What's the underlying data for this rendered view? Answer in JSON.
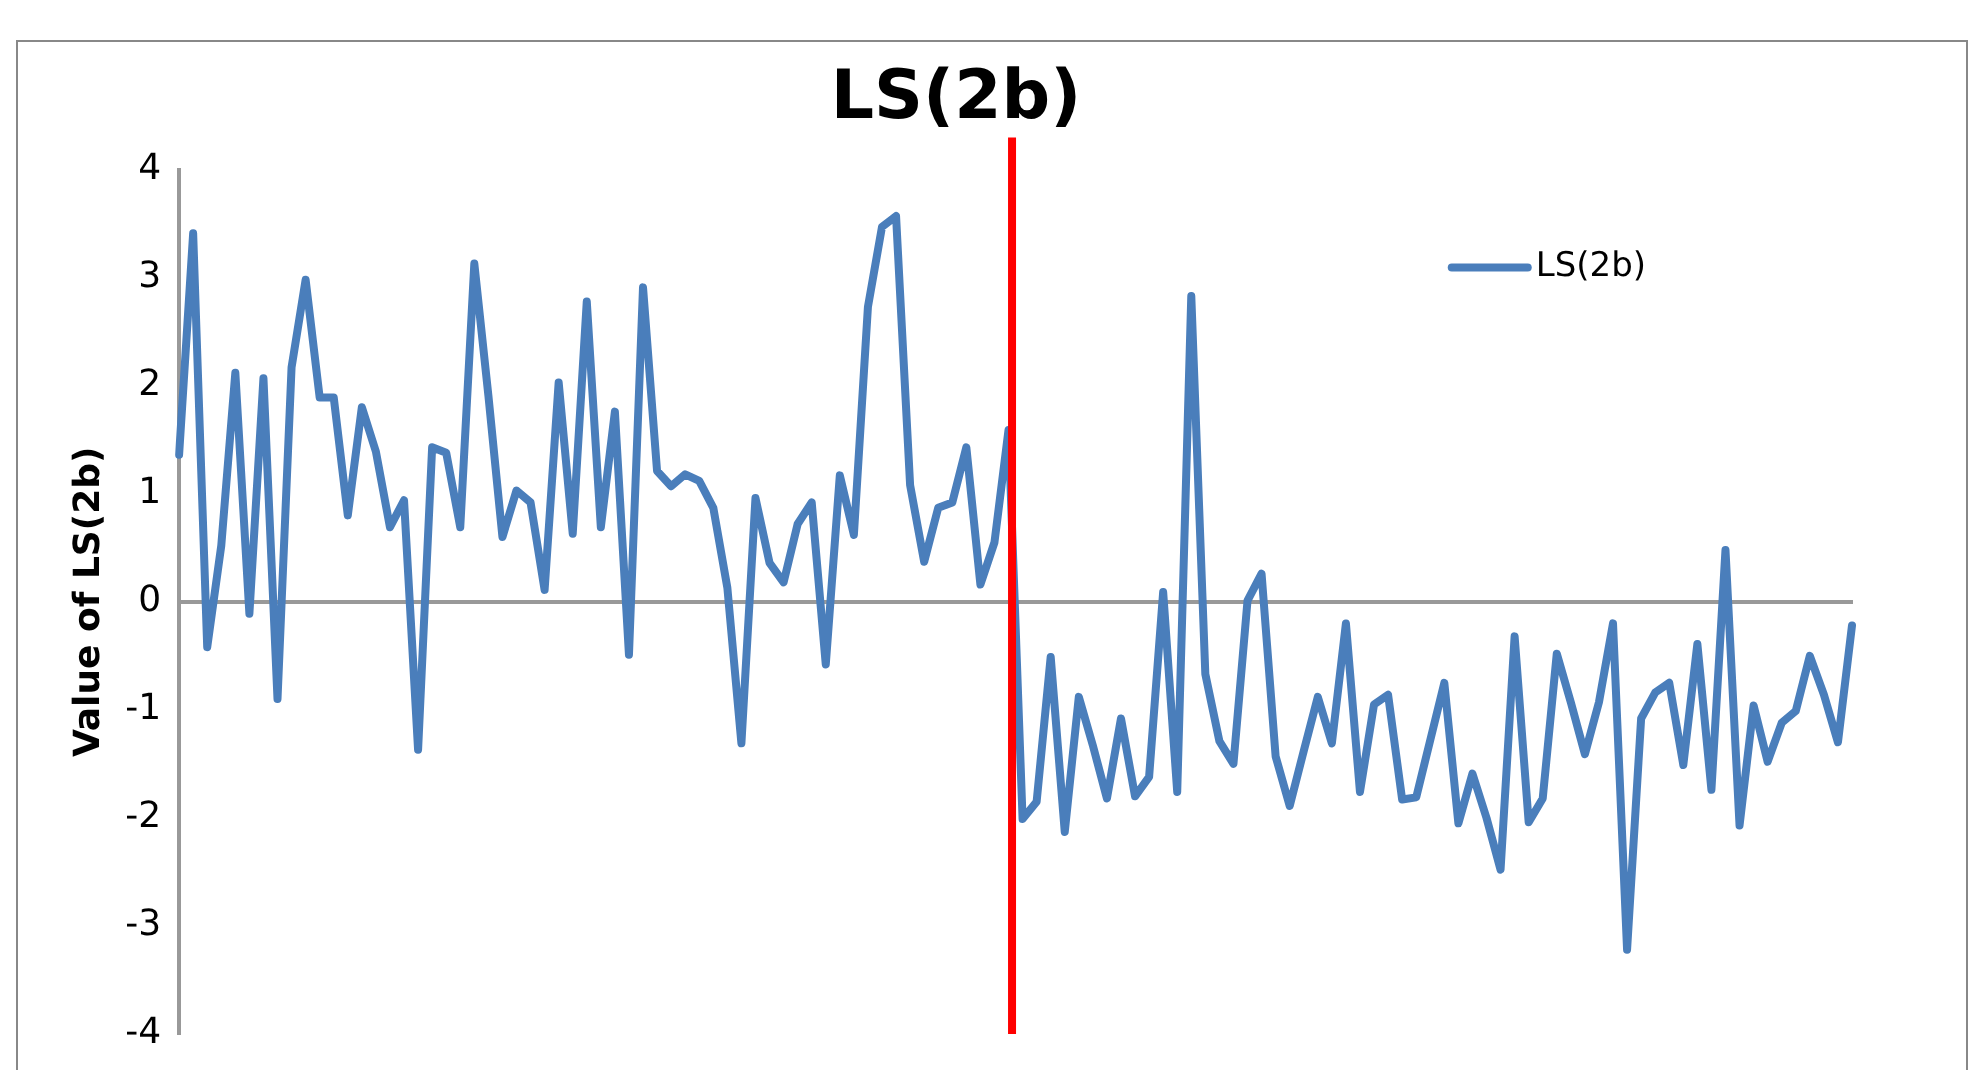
{
  "chart_data": {
    "type": "line",
    "title": "LS(2b)",
    "ylabel": "Value of LS(2b)",
    "categories": [
      null,
      null,
      null,
      null,
      null,
      null,
      null,
      null,
      null,
      null,
      null,
      null,
      null,
      null,
      null,
      null,
      null,
      null,
      null,
      null,
      null,
      null,
      null,
      null,
      null,
      null,
      null,
      null,
      null,
      null,
      null,
      null,
      null,
      null,
      null,
      null,
      null,
      null,
      null,
      null,
      null,
      null,
      null,
      null,
      null,
      null,
      null,
      null,
      null,
      null,
      null,
      null,
      null,
      null,
      null,
      null,
      null,
      null,
      null,
      null,
      null,
      null,
      null,
      null,
      null,
      null,
      null,
      null,
      null,
      null,
      null,
      null,
      null,
      null,
      null,
      null,
      null,
      null,
      null,
      null,
      null,
      null,
      null,
      null,
      null,
      null,
      null,
      null,
      null,
      null,
      null,
      null,
      null,
      null,
      null,
      null,
      null,
      null,
      null,
      null,
      null,
      null,
      null,
      null,
      null,
      null,
      null,
      null,
      null,
      null,
      null,
      null,
      null,
      null,
      null,
      null,
      null,
      null,
      null,
      null
    ],
    "series": [
      {
        "name": "LS(2b)",
        "color": "#4a7ebb",
        "values": [
          1.36,
          3.41,
          -0.42,
          0.52,
          2.12,
          -0.11,
          2.07,
          -0.9,
          2.17,
          2.98,
          1.89,
          1.89,
          0.8,
          1.8,
          1.39,
          0.69,
          0.94,
          -1.37,
          1.43,
          1.38,
          0.69,
          3.13,
          1.91,
          0.6,
          1.03,
          0.92,
          0.11,
          2.03,
          0.63,
          2.78,
          0.69,
          1.76,
          -0.49,
          2.91,
          1.21,
          1.07,
          1.18,
          1.12,
          0.87,
          0.13,
          -1.31,
          0.96,
          0.36,
          0.18,
          0.72,
          0.92,
          -0.58,
          1.17,
          0.62,
          2.73,
          3.47,
          3.57,
          1.08,
          0.37,
          0.87,
          0.92,
          1.43,
          0.16,
          0.55,
          1.59,
          -2.01,
          -1.85,
          -0.51,
          -2.13,
          -0.88,
          -1.33,
          -1.82,
          -1.08,
          -1.8,
          -1.62,
          0.09,
          -1.76,
          2.83,
          -0.67,
          -1.29,
          -1.5,
          0.01,
          0.26,
          -1.43,
          -1.89,
          -1.38,
          -0.88,
          -1.31,
          -0.2,
          -1.76,
          -0.95,
          -0.86,
          -1.83,
          -1.81,
          -1.28,
          -0.75,
          -2.05,
          -1.59,
          -2.0,
          -2.48,
          -0.32,
          -2.04,
          -1.82,
          -0.48,
          -0.93,
          -1.41,
          -0.93,
          -0.2,
          -3.22,
          -1.08,
          -0.84,
          -0.75,
          -1.51,
          -0.39,
          -1.74,
          0.48,
          -2.07,
          -0.96,
          -1.48,
          -1.12,
          -1.01,
          -0.5,
          -0.86,
          -1.3,
          -0.22
        ]
      }
    ],
    "ylim": [
      -4,
      4
    ],
    "yticks": [
      -4,
      -3,
      -2,
      -1,
      0,
      1,
      2,
      3,
      4
    ],
    "tick_labels": "y",
    "grid": false,
    "legend": "top right",
    "marker": "none",
    "line_style": "solid"
  }
}
